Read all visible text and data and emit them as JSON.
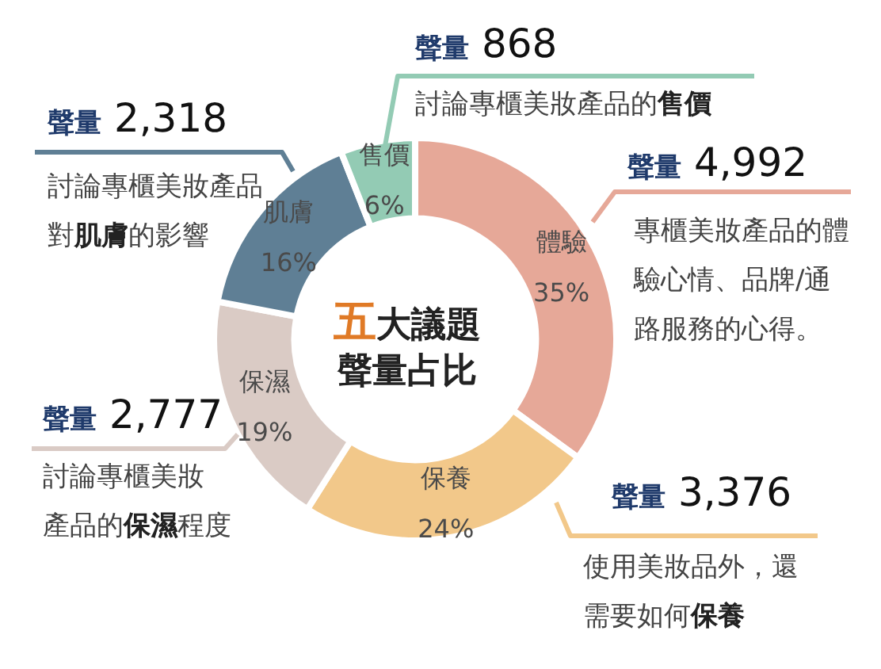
{
  "chart_data": {
    "type": "donut",
    "title": "五大議題",
    "subtitle": "聲量占比",
    "categories": [
      "體驗",
      "保養",
      "保濕",
      "肌膚",
      "售價"
    ],
    "values": [
      35,
      24,
      19,
      16,
      6
    ],
    "value_labels": [
      "35%",
      "24%",
      "19%",
      "16%",
      "6%"
    ],
    "colors": [
      "#e6a898",
      "#f2c88a",
      "#dacbc5",
      "#5f7f95",
      "#93cbb4"
    ],
    "annotations": [
      "**聲量** 4,992",
      "專櫃美妝產品的體驗心情、品牌/通路服務的心得。",
      "**聲量** 3,376",
      "使用美妝品外，還需要如何**保養**",
      "**聲量** 2,777",
      "討論專櫃美妝產品的**保濕**程度",
      "**聲量** 2,318",
      "討論專櫃美妝產品對**肌膚**的影響",
      "**聲量** 868",
      "討論專櫃美妝產品的**售價**"
    ]
  }
}
